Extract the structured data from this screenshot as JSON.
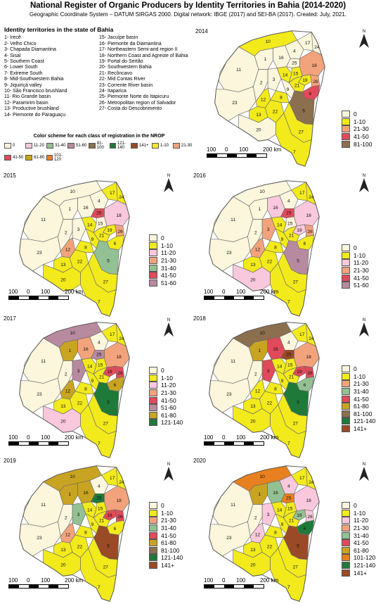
{
  "title": "National Register of Organic Producers by Identity Territories in Bahia (2014-2020)",
  "subtitle": "Geographic Coordinate System – DATUM SIRGAS 2000. Digital network: IBGE (2017) and SEI-BA (2017). Created: July, 2021.",
  "territories": {
    "heading": "Identity territories in the state of Bahia",
    "col1": [
      "1- Irecê",
      "2- Velho Chico",
      "3- Chapada Diamantina",
      "4- Sisal",
      "5- Southern Coast",
      "6- Lower South",
      "7- Extreme South",
      "8- Mid-Southwestern Bahia",
      "9- Jiquiriçá valley",
      "10- São Francisco brushland",
      "11- Rio Grande basin",
      "12- Paramirim basin",
      "13- Productive brushland",
      "14- Piemonte do Paraguaçu"
    ],
    "col2": [
      "15- Jacuípe basin",
      "16- Piemonte da Diamantina",
      "17- Northeastern Semi-arid region II",
      "18- Northern Coast and Agreste of Bahia",
      "19- Portal do Sertão",
      "20- Southwestern Bahia",
      "21- Recôncavo",
      "22- Mid Contas River",
      "23- Corrente River basin",
      "24- Itaparica",
      "25- Piemonte Norte do Itapicuru",
      "26- Metropolitan region of Salvador",
      "27- Costa do Descobrimento"
    ]
  },
  "scheme": {
    "heading": "Color scheme for each class of registration in the NROP",
    "items": [
      {
        "label": "0",
        "color": "#fbf6dc"
      },
      {
        "label": "11-20",
        "color": "#f9c8dc"
      },
      {
        "label": "31-40",
        "color": "#93c193"
      },
      {
        "label": "51-60",
        "color": "#b88a9f"
      },
      {
        "label": "81-100",
        "color": "#8b6f4e"
      },
      {
        "label": "121-140",
        "color": "#1f7a3a"
      },
      {
        "label": "141+",
        "color": "#9a4a25"
      },
      {
        "label": "1-10",
        "color": "#f2ea1b"
      },
      {
        "label": "21-30",
        "color": "#f3a37b"
      },
      {
        "label": "41-50",
        "color": "#e04a5a"
      },
      {
        "label": "61-80",
        "color": "#c9a422"
      },
      {
        "label": "101-120",
        "color": "#e8801f"
      }
    ]
  },
  "colors": {
    "c0": "#fbf6dc",
    "c1_10": "#f2ea1b",
    "c11_20": "#f9c8dc",
    "c21_30": "#f3a37b",
    "c31_40": "#93c193",
    "c41_50": "#e04a5a",
    "c51_60": "#b88a9f",
    "c61_80": "#c9a422",
    "c81_100": "#8b6f4e",
    "c101_120": "#e8801f",
    "c121_140": "#1f7a3a",
    "c141": "#9a4a25"
  },
  "scale": {
    "labels": [
      "100",
      "0",
      "100",
      "200 km"
    ]
  },
  "north": "N",
  "panels": [
    {
      "year": "2014",
      "legend": [
        {
          "label": "0",
          "color": "#fbf6dc"
        },
        {
          "label": "1-10",
          "color": "#f2ea1b"
        },
        {
          "label": "21-30",
          "color": "#f3a37b"
        },
        {
          "label": "41-50",
          "color": "#e04a5a"
        },
        {
          "label": "81-100",
          "color": "#8b6f4e"
        }
      ]
    },
    {
      "year": "2015",
      "legend": [
        {
          "label": "0",
          "color": "#fbf6dc"
        },
        {
          "label": "1-10",
          "color": "#f2ea1b"
        },
        {
          "label": "11-20",
          "color": "#f9c8dc"
        },
        {
          "label": "21-30",
          "color": "#f3a37b"
        },
        {
          "label": "31-40",
          "color": "#93c193"
        },
        {
          "label": "41-50",
          "color": "#e04a5a"
        },
        {
          "label": "51-60",
          "color": "#b88a9f"
        }
      ]
    },
    {
      "year": "2016",
      "legend": [
        {
          "label": "0",
          "color": "#fbf6dc"
        },
        {
          "label": "1-10",
          "color": "#f2ea1b"
        },
        {
          "label": "11-20",
          "color": "#f9c8dc"
        },
        {
          "label": "21-30",
          "color": "#f3a37b"
        },
        {
          "label": "41-50",
          "color": "#e04a5a"
        },
        {
          "label": "51-60",
          "color": "#b88a9f"
        }
      ]
    },
    {
      "year": "2017",
      "legend": [
        {
          "label": "0",
          "color": "#fbf6dc"
        },
        {
          "label": "1-10",
          "color": "#f2ea1b"
        },
        {
          "label": "11-20",
          "color": "#f9c8dc"
        },
        {
          "label": "21-30",
          "color": "#f3a37b"
        },
        {
          "label": "41-50",
          "color": "#e04a5a"
        },
        {
          "label": "51-60",
          "color": "#b88a9f"
        },
        {
          "label": "61-80",
          "color": "#c9a422"
        },
        {
          "label": "121-140",
          "color": "#1f7a3a"
        }
      ]
    },
    {
      "year": "2018",
      "legend": [
        {
          "label": "0",
          "color": "#fbf6dc"
        },
        {
          "label": "1-10",
          "color": "#f2ea1b"
        },
        {
          "label": "21-30",
          "color": "#f3a37b"
        },
        {
          "label": "31-40",
          "color": "#93c193"
        },
        {
          "label": "41-50",
          "color": "#e04a5a"
        },
        {
          "label": "61-80",
          "color": "#c9a422"
        },
        {
          "label": "81-100",
          "color": "#8b6f4e"
        },
        {
          "label": "121-140",
          "color": "#1f7a3a"
        },
        {
          "label": "141+",
          "color": "#9a4a25"
        }
      ]
    },
    {
      "year": "2019",
      "legend": [
        {
          "label": "0",
          "color": "#fbf6dc"
        },
        {
          "label": "1-10",
          "color": "#f2ea1b"
        },
        {
          "label": "21-30",
          "color": "#f3a37b"
        },
        {
          "label": "31-40",
          "color": "#93c193"
        },
        {
          "label": "41-50",
          "color": "#e04a5a"
        },
        {
          "label": "61-80",
          "color": "#c9a422"
        },
        {
          "label": "81-100",
          "color": "#8b6f4e"
        },
        {
          "label": "121-140",
          "color": "#1f7a3a"
        },
        {
          "label": "141+",
          "color": "#9a4a25"
        }
      ]
    },
    {
      "year": "2020",
      "legend": [
        {
          "label": "0",
          "color": "#fbf6dc"
        },
        {
          "label": "1-10",
          "color": "#f2ea1b"
        },
        {
          "label": "11-20",
          "color": "#f9c8dc"
        },
        {
          "label": "21-30",
          "color": "#f3a37b"
        },
        {
          "label": "31-40",
          "color": "#93c193"
        },
        {
          "label": "41-50",
          "color": "#e04a5a"
        },
        {
          "label": "61-80",
          "color": "#c9a422"
        },
        {
          "label": "101-120",
          "color": "#e8801f"
        },
        {
          "label": "121-140",
          "color": "#1f7a3a"
        },
        {
          "label": "141+",
          "color": "#9a4a25"
        }
      ]
    }
  ],
  "map_classes": {
    "2014": {
      "1": "c0",
      "2": "c0",
      "3": "c0",
      "4": "c0",
      "5": "c81_100",
      "6": "c41_50",
      "7": "c1_10",
      "8": "c1_10",
      "9": "c0",
      "10": "c1_10",
      "11": "c0",
      "12": "c1_10",
      "13": "c1_10",
      "14": "c1_10",
      "15": "c1_10",
      "16": "c0",
      "17": "c0",
      "18": "c21_30",
      "19": "c1_10",
      "20": "c0",
      "21": "c1_10",
      "22": "c1_10",
      "23": "c0",
      "24": "c0",
      "25": "c0",
      "26": "c21_30",
      "27": "c1_10"
    },
    "2015": {
      "1": "c0",
      "2": "c0",
      "3": "c0",
      "4": "c0",
      "5": "c31_40",
      "6": "c1_10",
      "7": "c1_10",
      "8": "c1_10",
      "9": "c1_10",
      "10": "c0",
      "11": "c0",
      "12": "c21_30",
      "13": "c1_10",
      "14": "c1_10",
      "15": "c0",
      "16": "c0",
      "17": "c1_10",
      "18": "c11_20",
      "19": "c1_10",
      "20": "c1_10",
      "21": "c1_10",
      "22": "c1_10",
      "23": "c0",
      "24": "c1_10",
      "25": "c41_50",
      "26": "c21_30",
      "27": "c1_10"
    },
    "2016": {
      "1": "c0",
      "2": "c0",
      "3": "c21_30",
      "4": "c0",
      "5": "c51_60",
      "6": "c1_10",
      "7": "c1_10",
      "8": "c1_10",
      "9": "c1_10",
      "10": "c0",
      "11": "c0",
      "12": "c21_30",
      "13": "c1_10",
      "14": "c1_10",
      "15": "c0",
      "16": "c11_20",
      "17": "c1_10",
      "18": "c11_20",
      "19": "c11_20",
      "20": "c11_20",
      "21": "c1_10",
      "22": "c1_10",
      "23": "c0",
      "24": "c1_10",
      "25": "c41_50",
      "26": "c21_30",
      "27": "c1_10"
    },
    "2017": {
      "1": "c61_80",
      "2": "c0",
      "3": "c51_60",
      "4": "c0",
      "5": "c121_140",
      "6": "c61_80",
      "7": "c1_10",
      "8": "c1_10",
      "9": "c1_10",
      "10": "c51_60",
      "11": "c0",
      "12": "c61_80",
      "13": "c1_10",
      "14": "c1_10",
      "15": "c1_10",
      "16": "c21_30",
      "17": "c1_10",
      "18": "c21_30",
      "19": "c41_50",
      "20": "c11_20",
      "21": "c1_10",
      "22": "c1_10",
      "23": "c0",
      "24": "c1_10",
      "25": "c51_60",
      "26": "c41_50",
      "27": "c1_10"
    },
    "2018": {
      "1": "c61_80",
      "2": "c0",
      "3": "c41_50",
      "4": "c0",
      "5": "c121_140",
      "6": "c31_40",
      "7": "c1_10",
      "8": "c1_10",
      "9": "c1_10",
      "10": "c81_100",
      "11": "c0",
      "12": "c1_10",
      "13": "c1_10",
      "14": "c1_10",
      "15": "c1_10",
      "16": "c41_50",
      "17": "c1_10",
      "18": "c21_30",
      "19": "c41_50",
      "20": "c1_10",
      "21": "c1_10",
      "22": "c1_10",
      "23": "c0",
      "24": "c1_10",
      "25": "c141",
      "26": "c41_50",
      "27": "c1_10"
    },
    "2019": {
      "1": "c61_80",
      "2": "c0",
      "3": "c31_40",
      "4": "c0",
      "5": "c141",
      "6": "c1_10",
      "7": "c1_10",
      "8": "c1_10",
      "9": "c1_10",
      "10": "c61_80",
      "11": "c0",
      "12": "c21_30",
      "13": "c1_10",
      "14": "c1_10",
      "15": "c1_10",
      "16": "c61_80",
      "17": "c1_10",
      "18": "c21_30",
      "19": "c41_50",
      "20": "c1_10",
      "21": "c1_10",
      "22": "c1_10",
      "23": "c0",
      "24": "c1_10",
      "25": "c121_140",
      "26": "c41_50",
      "27": "c1_10"
    },
    "2020": {
      "1": "c61_80",
      "2": "c0",
      "3": "c11_20",
      "4": "c11_20",
      "5": "c141",
      "6": "c121_140",
      "7": "c1_10",
      "8": "c1_10",
      "9": "c1_10",
      "10": "c101_120",
      "11": "c0",
      "12": "c11_20",
      "13": "c1_10",
      "14": "c1_10",
      "15": "c1_10",
      "16": "c31_40",
      "17": "c1_10",
      "18": "c11_20",
      "19": "c31_40",
      "20": "c1_10",
      "21": "c1_10",
      "22": "c1_10",
      "23": "c0",
      "24": "c1_10",
      "25": "c101_120",
      "26": "c11_20",
      "27": "c1_10"
    }
  }
}
